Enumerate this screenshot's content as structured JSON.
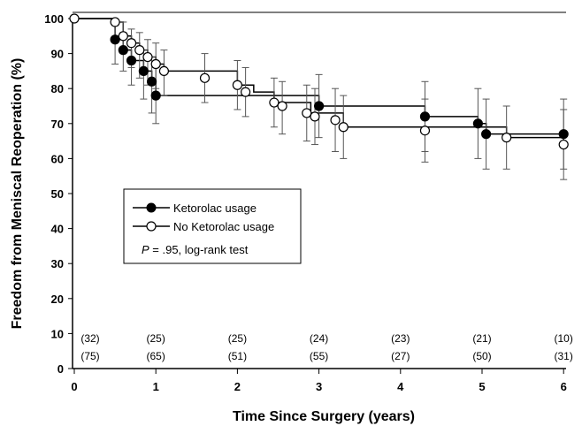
{
  "chart_data": {
    "type": "line",
    "subtype": "kaplan-meier-step",
    "xlabel": "Time Since Surgery (years)",
    "ylabel": "Freedom from Meniscal Reoperation (%)",
    "xlim": [
      0,
      6.3
    ],
    "ylim": [
      0,
      100
    ],
    "xticks": [
      0,
      1,
      2,
      3,
      4,
      5,
      6
    ],
    "yticks": [
      0,
      10,
      20,
      30,
      40,
      50,
      60,
      70,
      80,
      90,
      100
    ],
    "grid": false,
    "legend": {
      "position": "center-left",
      "entries": [
        "Ketorolac usage",
        "No Ketorolac usage"
      ],
      "note_italic": "P",
      "note_text": " = .95, log-rank test"
    },
    "series": [
      {
        "name": "Ketorolac usage",
        "marker": "filled-circle",
        "steps": [
          [
            0,
            100
          ],
          [
            0.5,
            94
          ],
          [
            0.6,
            91
          ],
          [
            0.7,
            88
          ],
          [
            0.85,
            85
          ],
          [
            0.95,
            82
          ],
          [
            1.0,
            78
          ],
          [
            3.0,
            75
          ],
          [
            4.3,
            72
          ],
          [
            4.95,
            70
          ],
          [
            5.05,
            67
          ]
        ],
        "line_end_x": 6.0,
        "points": [
          {
            "x": 0.5,
            "y": 94,
            "lo": 87,
            "hi": 98
          },
          {
            "x": 0.6,
            "y": 91,
            "lo": 85,
            "hi": 96
          },
          {
            "x": 0.7,
            "y": 88,
            "lo": 81,
            "hi": 94
          },
          {
            "x": 0.85,
            "y": 85,
            "lo": 77,
            "hi": 91
          },
          {
            "x": 0.95,
            "y": 82,
            "lo": 73,
            "hi": 89
          },
          {
            "x": 1.0,
            "y": 78,
            "lo": 70,
            "hi": 86
          },
          {
            "x": 3.0,
            "y": 75,
            "lo": 66,
            "hi": 84
          },
          {
            "x": 4.3,
            "y": 72,
            "lo": 62,
            "hi": 82
          },
          {
            "x": 4.95,
            "y": 70,
            "lo": 60,
            "hi": 80
          },
          {
            "x": 5.05,
            "y": 67,
            "lo": 57,
            "hi": 77
          },
          {
            "x": 6.0,
            "y": 67,
            "lo": 57,
            "hi": 77
          }
        ],
        "at_risk": [
          "(32)",
          "(25)",
          "(25)",
          "(24)",
          "(23)",
          "(21)",
          "(10)"
        ]
      },
      {
        "name": "No Ketorolac usage",
        "marker": "open-circle",
        "steps": [
          [
            0,
            100
          ],
          [
            0.5,
            99
          ],
          [
            0.6,
            95
          ],
          [
            0.7,
            93
          ],
          [
            0.8,
            91
          ],
          [
            0.9,
            89
          ],
          [
            1.0,
            87
          ],
          [
            1.1,
            85
          ],
          [
            2.0,
            81
          ],
          [
            2.2,
            79
          ],
          [
            2.45,
            76
          ],
          [
            2.9,
            73
          ],
          [
            3.3,
            69
          ],
          [
            5.3,
            66
          ],
          [
            6.0,
            64
          ]
        ],
        "line_end_x": 6.0,
        "points": [
          {
            "x": 0.5,
            "y": 99,
            "lo": null,
            "hi": null
          },
          {
            "x": 0.6,
            "y": 95,
            "lo": 90,
            "hi": 99
          },
          {
            "x": 0.7,
            "y": 93,
            "lo": 86,
            "hi": 97
          },
          {
            "x": 0.8,
            "y": 91,
            "lo": 83,
            "hi": 96
          },
          {
            "x": 0.9,
            "y": 89,
            "lo": 81,
            "hi": 94
          },
          {
            "x": 1.0,
            "y": 87,
            "lo": 80,
            "hi": 93
          },
          {
            "x": 1.1,
            "y": 85,
            "lo": 78,
            "hi": 91
          },
          {
            "x": 1.6,
            "y": 83,
            "lo": 76,
            "hi": 90
          },
          {
            "x": 2.0,
            "y": 81,
            "lo": 74,
            "hi": 88
          },
          {
            "x": 2.1,
            "y": 79,
            "lo": 72,
            "hi": 86
          },
          {
            "x": 2.45,
            "y": 76,
            "lo": 69,
            "hi": 83
          },
          {
            "x": 2.55,
            "y": 75,
            "lo": 67,
            "hi": 82
          },
          {
            "x": 2.85,
            "y": 73,
            "lo": 65,
            "hi": 81
          },
          {
            "x": 2.95,
            "y": 72,
            "lo": 64,
            "hi": 80
          },
          {
            "x": 3.2,
            "y": 71,
            "lo": 62,
            "hi": 80
          },
          {
            "x": 3.3,
            "y": 69,
            "lo": 60,
            "hi": 78
          },
          {
            "x": 4.3,
            "y": 68,
            "lo": 59,
            "hi": 77
          },
          {
            "x": 5.3,
            "y": 66,
            "lo": 57,
            "hi": 75
          },
          {
            "x": 6.0,
            "y": 64,
            "lo": 54,
            "hi": 74
          }
        ],
        "at_risk": [
          "(75)",
          "(65)",
          "(51)",
          "(55)",
          "(27)",
          "(50)",
          "(31)"
        ]
      }
    ],
    "at_risk_x": [
      0,
      1,
      2,
      3,
      4,
      5,
      6
    ]
  }
}
